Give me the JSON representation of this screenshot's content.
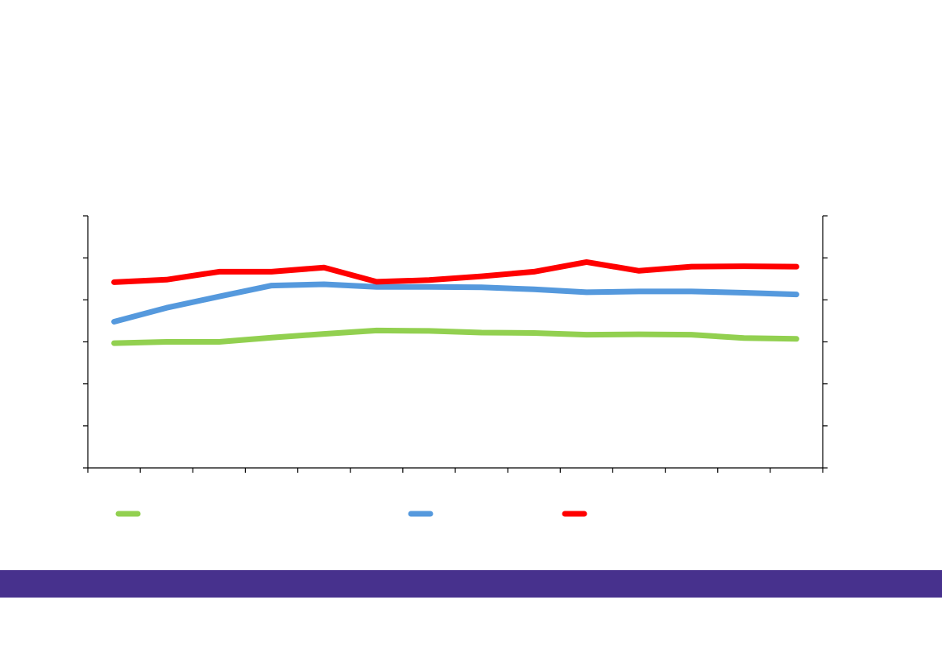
{
  "chart_data": {
    "type": "line",
    "x": [
      1,
      2,
      3,
      4,
      5,
      6,
      7,
      8,
      9,
      10,
      11,
      12,
      13,
      14
    ],
    "ylim": [
      0,
      6
    ],
    "y_ticks": [
      0,
      1,
      2,
      3,
      4,
      5,
      6
    ],
    "x_tick_count": 15,
    "grid": false,
    "legend_position": "bottom",
    "series": [
      {
        "color": "#92d050",
        "values": [
          2.97,
          3.0,
          3.0,
          3.1,
          3.19,
          3.27,
          3.26,
          3.22,
          3.21,
          3.17,
          3.18,
          3.17,
          3.09,
          3.07
        ]
      },
      {
        "color": "#5599dd",
        "values": [
          3.48,
          3.81,
          4.08,
          4.34,
          4.37,
          4.31,
          4.31,
          4.3,
          4.25,
          4.18,
          4.2,
          4.2,
          4.17,
          4.13
        ]
      },
      {
        "color": "#ff0000",
        "values": [
          4.42,
          4.48,
          4.67,
          4.67,
          4.77,
          4.43,
          4.47,
          4.56,
          4.67,
          4.9,
          4.69,
          4.79,
          4.8,
          4.79
        ]
      }
    ]
  },
  "colors": {
    "axis": "#000000",
    "footer_band": "#47318d",
    "background": "#ffffff"
  }
}
